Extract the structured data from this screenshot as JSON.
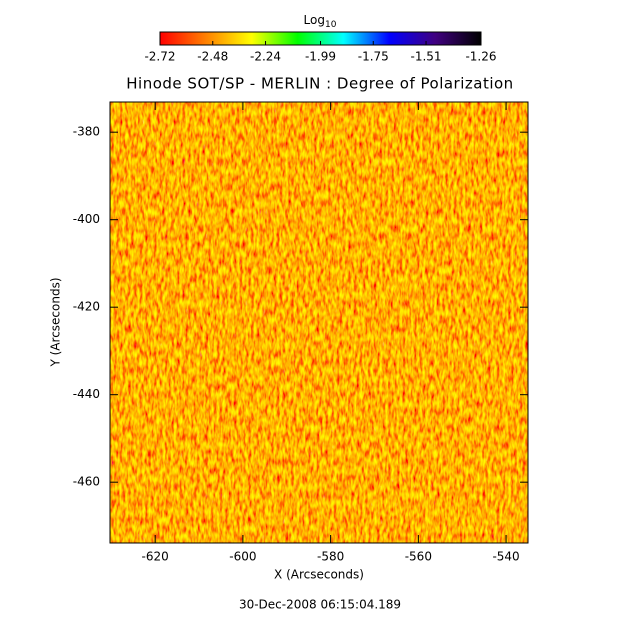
{
  "chart_data": {
    "type": "heatmap",
    "title": "Hinode SOT/SP - MERLIN : Degree of Polarization",
    "x_label": "X (Arcseconds)",
    "y_label": "Y (Arcseconds)",
    "timestamp": "30-Dec-2008 06:15:04.189",
    "xlim": [
      -630.3,
      -535.0
    ],
    "xticks": [
      -620,
      -600,
      -580,
      -560,
      -540
    ],
    "ylim": [
      -473.9,
      -373.1
    ],
    "yticks": [
      -460,
      -440,
      -420,
      -400,
      -380
    ],
    "colorbar": {
      "label": "Log",
      "label_subscript": "10",
      "lim": [
        -2.72,
        -1.26
      ],
      "ticks": [
        -2.72,
        -2.48,
        -2.24,
        -1.99,
        -1.75,
        -1.51,
        -1.26
      ],
      "colors": [
        "#ff0000",
        "#ff8000",
        "#ffff00",
        "#00ff00",
        "#00ffff",
        "#0000ff",
        "#400080",
        "#000000"
      ]
    }
  }
}
